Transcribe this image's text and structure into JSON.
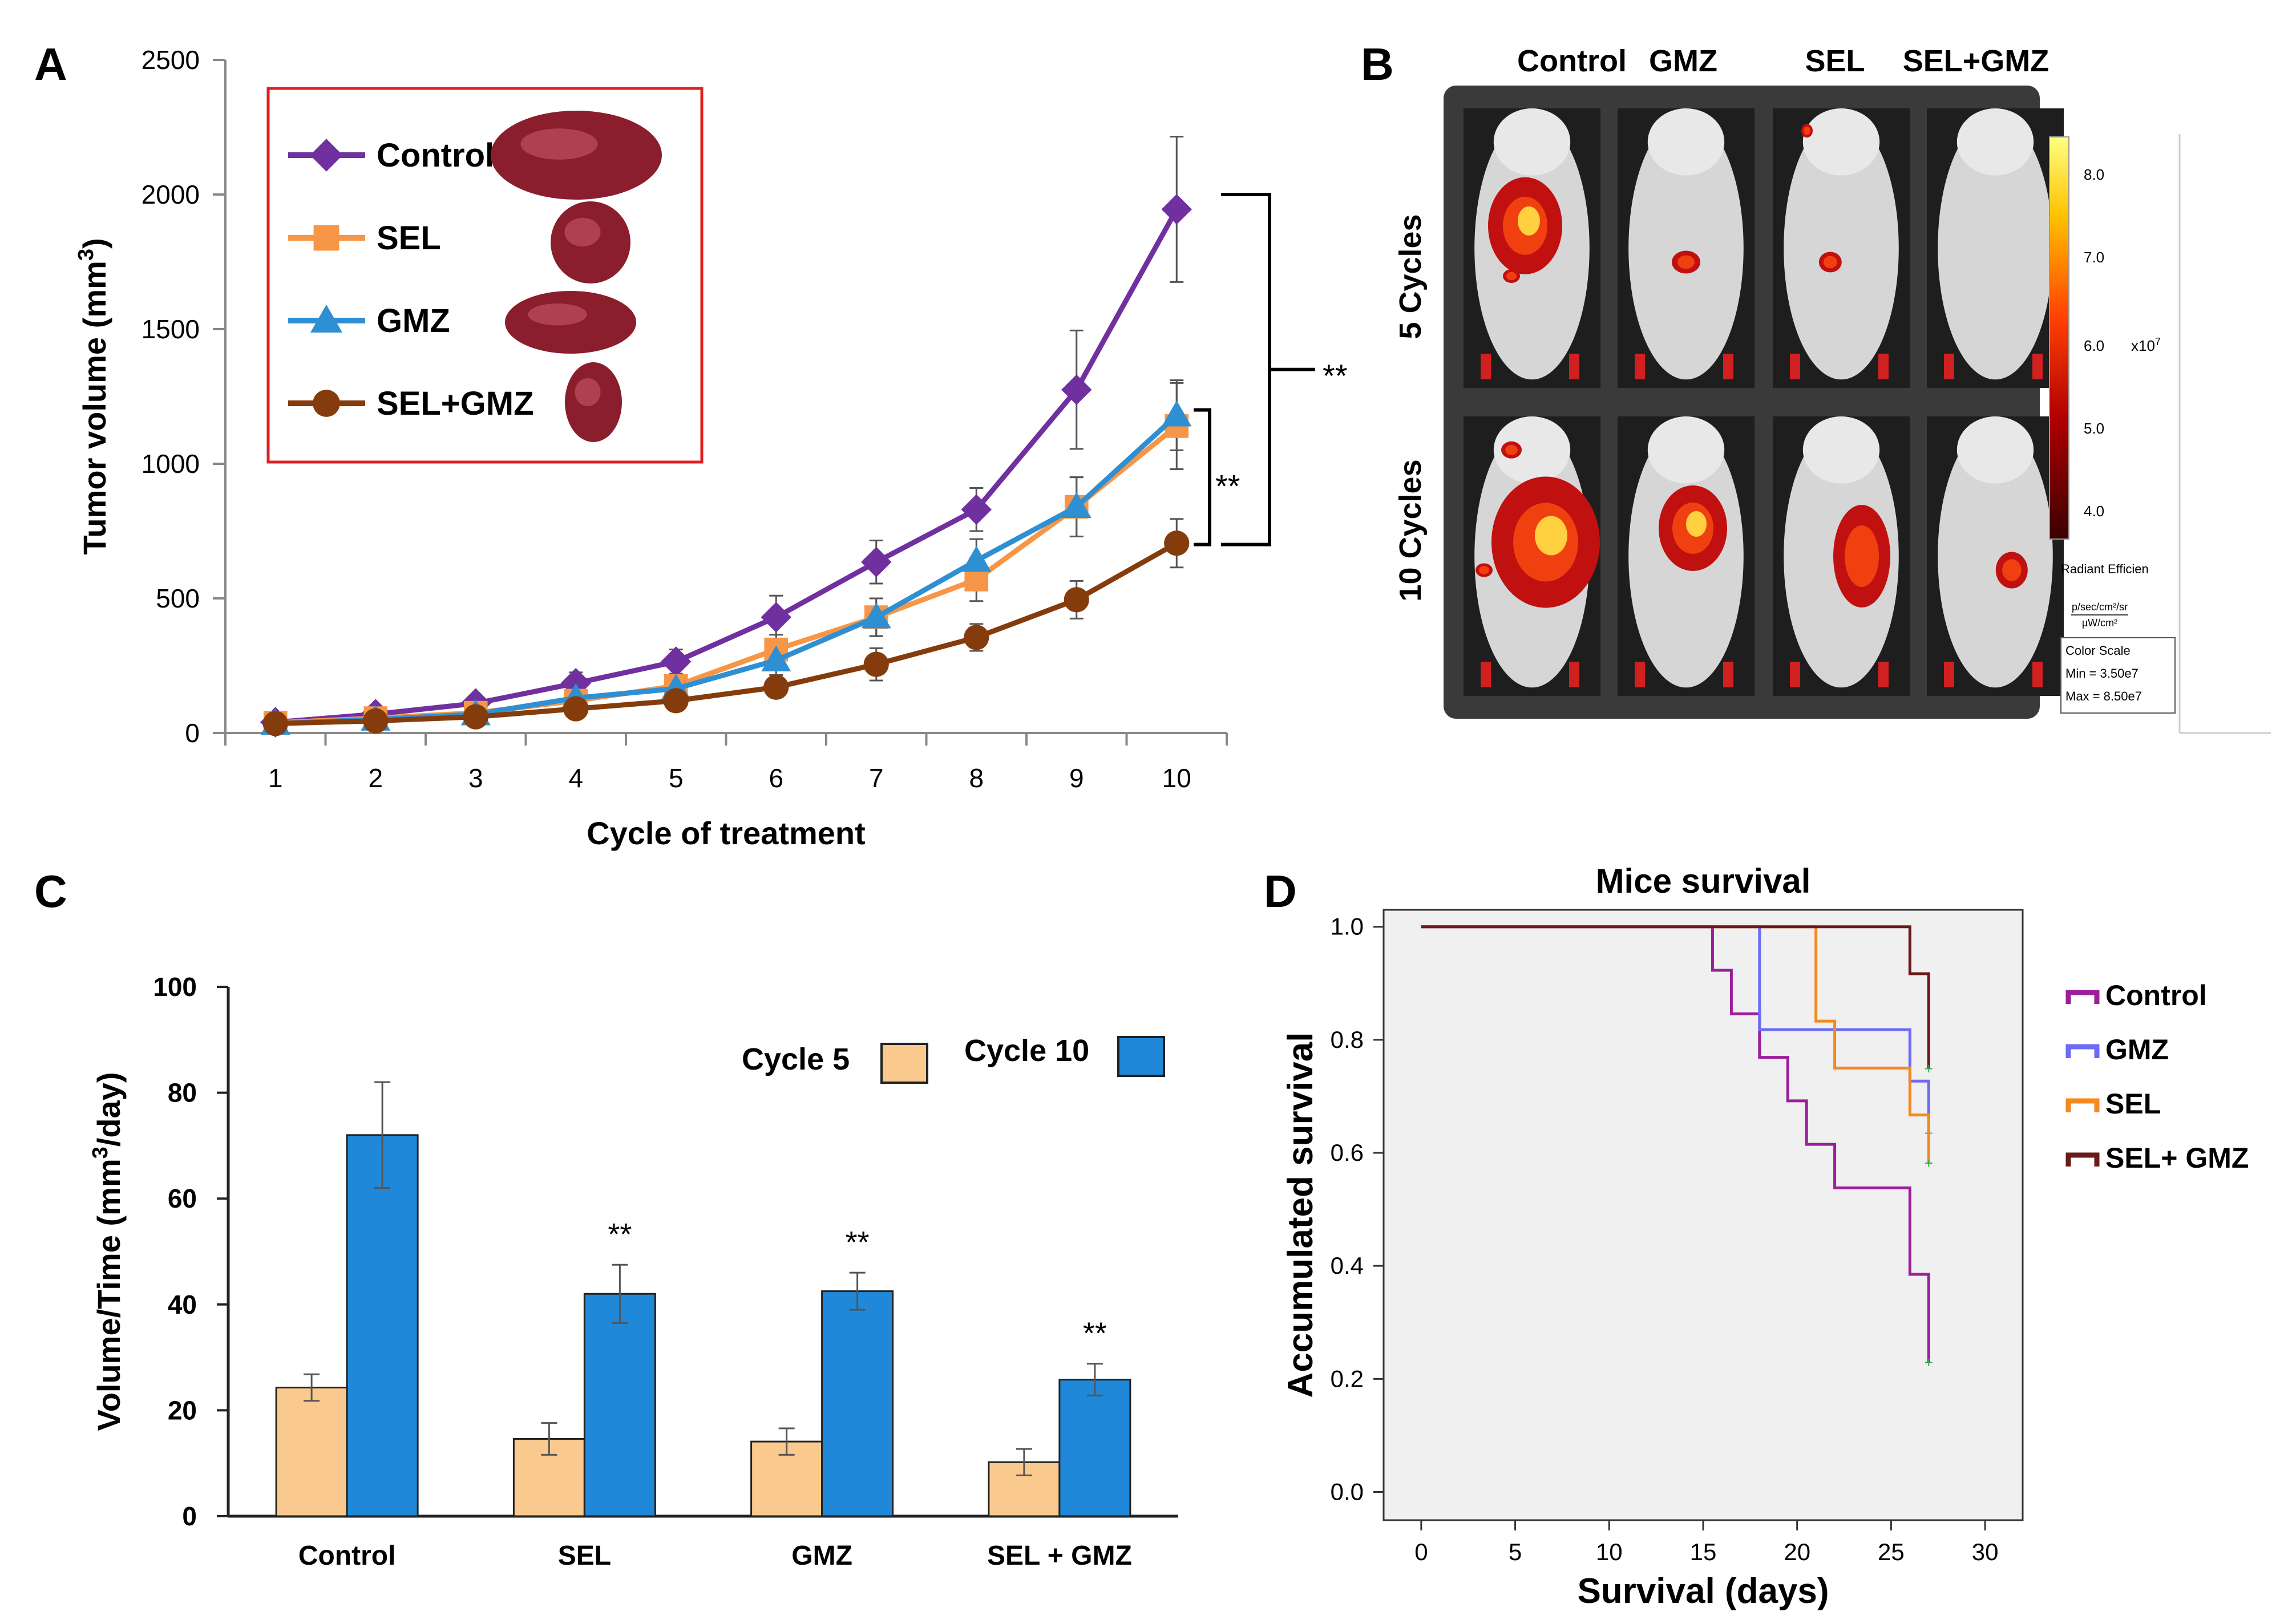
{
  "figure": {
    "panel_labels": [
      "A",
      "B",
      "C",
      "D"
    ]
  },
  "chart_data": [
    {
      "panel": "A",
      "type": "line",
      "xlabel": "Cycle of treatment",
      "ylabel": "Tumor volume (mm³)",
      "ylabel_main": "Tumor volume (mm",
      "ylabel_sup": "3",
      "ylabel_end": ")",
      "x": [
        1,
        2,
        3,
        4,
        5,
        6,
        7,
        8,
        9,
        10
      ],
      "xlim": [
        0.5,
        10.5
      ],
      "ylim": [
        0,
        2500
      ],
      "yticks": [
        0,
        500,
        1000,
        1500,
        2000,
        2500
      ],
      "series": [
        {
          "name": "Control",
          "color": "#7030A0",
          "marker": "diamond",
          "values": [
            40,
            70,
            110,
            185,
            265,
            430,
            635,
            830,
            1275,
            1945
          ],
          "errors": [
            12,
            18,
            25,
            40,
            45,
            80,
            80,
            80,
            220,
            270
          ]
        },
        {
          "name": "SEL",
          "color": "#F79646",
          "marker": "square",
          "values": [
            38,
            55,
            75,
            120,
            175,
            310,
            430,
            570,
            840,
            1140
          ],
          "errors": [
            10,
            12,
            20,
            30,
            35,
            55,
            70,
            80,
            110,
            160
          ]
        },
        {
          "name": "GMZ",
          "color": "#2E8FD2",
          "marker": "triangle",
          "values": [
            35,
            50,
            70,
            130,
            165,
            270,
            430,
            640,
            840,
            1180
          ],
          "errors": [
            10,
            12,
            20,
            30,
            35,
            55,
            70,
            80,
            110,
            130
          ]
        },
        {
          "name": "SEL+GMZ",
          "color": "#843C0C",
          "marker": "circle",
          "values": [
            35,
            45,
            60,
            90,
            120,
            170,
            255,
            355,
            495,
            705
          ],
          "errors": [
            8,
            10,
            15,
            20,
            25,
            30,
            60,
            50,
            70,
            90
          ]
        }
      ],
      "annotations": [
        "**",
        "**"
      ]
    },
    {
      "panel": "C",
      "type": "bar",
      "ylabel": "Volume/Time (mm³/day)",
      "ylabel_main": "Volume/Time (mm",
      "ylabel_sup": "3",
      "ylabel_end": "/day)",
      "categories": [
        "Control",
        "SEL",
        "GMZ",
        "SEL + GMZ"
      ],
      "ylim": [
        0,
        100
      ],
      "yticks": [
        0,
        20,
        40,
        60,
        80,
        100
      ],
      "series": [
        {
          "name": "Cycle 5",
          "color": "#FAC98E",
          "values": [
            24.3,
            14.6,
            14.1,
            10.2
          ],
          "errors": [
            2.5,
            3,
            2.5,
            2.5
          ]
        },
        {
          "name": "Cycle 10",
          "color": "#1F88D8",
          "values": [
            72,
            42,
            42.5,
            25.8
          ],
          "errors": [
            10,
            5.5,
            3.5,
            3
          ]
        }
      ],
      "annotations": [
        "**",
        "**",
        "**"
      ]
    },
    {
      "panel": "D",
      "type": "line",
      "title": "Mice survival",
      "xlabel": "Survival (days)",
      "ylabel": "Accumulated survival",
      "xlim": [
        -2,
        32
      ],
      "ylim": [
        -0.05,
        1.03
      ],
      "xticks": [
        0,
        5,
        10,
        15,
        20,
        25,
        30
      ],
      "yticks": [
        "0.0",
        "0.2",
        "0.4",
        "0.6",
        "0.8",
        "1.0"
      ],
      "series": [
        {
          "name": "Control",
          "color": "#9B1F9B",
          "x": [
            0,
            15,
            15.5,
            16.5,
            18,
            19.5,
            20.5,
            22,
            26,
            27
          ],
          "y": [
            1.0,
            1.0,
            0.923,
            0.846,
            0.769,
            0.692,
            0.615,
            0.538,
            0.385,
            0.23
          ]
        },
        {
          "name": "GMZ",
          "color": "#6C6CF5",
          "x": [
            0,
            15,
            18,
            26,
            27
          ],
          "y": [
            1.0,
            1.0,
            0.818,
            0.727,
            0.636
          ]
        },
        {
          "name": "SEL",
          "color": "#F5891F",
          "x": [
            0,
            18,
            21,
            22,
            26,
            27
          ],
          "y": [
            1.0,
            1.0,
            0.833,
            0.75,
            0.667,
            0.583
          ]
        },
        {
          "name": "SEL+ GMZ",
          "color": "#6B1A1A",
          "x": [
            0,
            24,
            26,
            27
          ],
          "y": [
            1.0,
            1.0,
            0.917,
            0.75
          ]
        }
      ],
      "censor_color": "#2FA84F"
    }
  ],
  "imaging": {
    "panel": "B",
    "columns": [
      "Control",
      "GMZ",
      "SEL",
      "SEL+GMZ"
    ],
    "rows": [
      "5 Cycles",
      "10 Cycles"
    ],
    "colorbar": {
      "ticks": [
        "8.0",
        "7.0",
        "6.0",
        "5.0",
        "4.0"
      ],
      "exponent": "x10",
      "exponent_sup": "7",
      "label": "Radiant Efficien",
      "units_num": "p/sec/cm²/sr",
      "units_den": "µW/cm²",
      "scale_title": "Color Scale",
      "scale_min": "Min = 3.50e7",
      "scale_max": "Max = 8.50e7"
    }
  }
}
